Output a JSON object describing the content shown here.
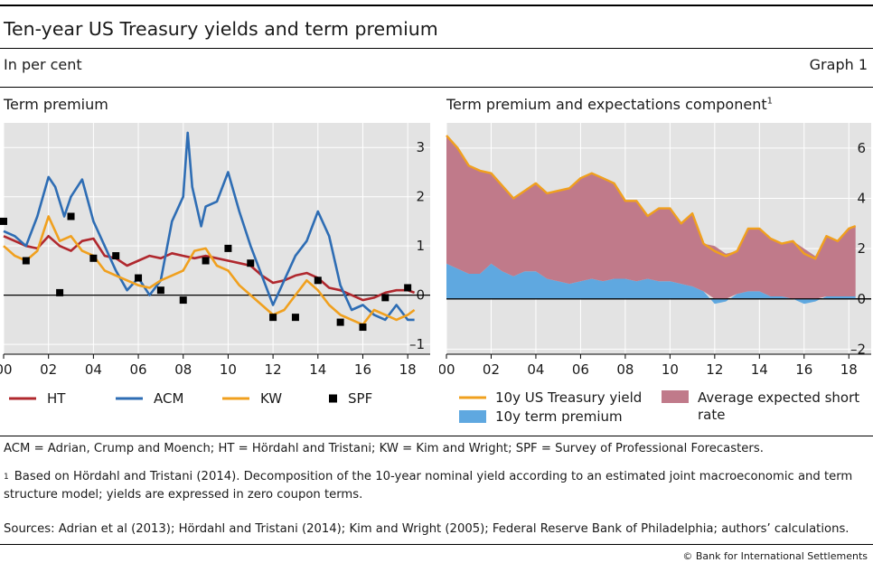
{
  "header": {
    "title": "Ten-year US Treasury yields and term premium",
    "subtitle": "In per cent",
    "graph_label": "Graph 1"
  },
  "footer": {
    "abbreviations": "ACM = Adrian, Crump and Moench; HT = Hördahl and Tristani; KW = Kim and Wright; SPF = Survey of Professional Forecasters.",
    "footnote_marker": "1",
    "footnote": "Based on Hördahl and Tristani (2014). Decomposition of the 10-year nominal yield according to an estimated joint macroeconomic and term structure model; yields are expressed in zero coupon terms.",
    "sources": "Sources: Adrian et al (2013); Hördahl and Tristani (2014); Kim and Wright (2005); Federal Reserve Bank of Philadelphia; authors’ calculations.",
    "copyright": "© Bank for International Settlements"
  },
  "colors": {
    "HT": "#b0282e",
    "ACM": "#2e6db4",
    "KW": "#f0a01e",
    "SPF": "#000000",
    "yield": "#f0a01e",
    "term_premium_area": "#5fa8e0",
    "expected_short_rate_area": "#c07a8a",
    "plot_bg": "#e3e3e3",
    "grid": "#ffffff"
  },
  "chart_data": [
    {
      "type": "line",
      "title": "Term premium",
      "title_superscript": "",
      "xlim": [
        2000,
        2019
      ],
      "ylim": [
        -1.2,
        3.5
      ],
      "x_ticks": [
        "00",
        "02",
        "04",
        "06",
        "08",
        "10",
        "12",
        "14",
        "16",
        "18"
      ],
      "y_ticks": [
        "–1",
        "0",
        "1",
        "2",
        "3"
      ],
      "y_axis": "right",
      "grid": true,
      "legend_position": "bottom",
      "series": [
        {
          "name": "HT",
          "x": [
            2000,
            2000.5,
            2001,
            2001.5,
            2002,
            2002.5,
            2003,
            2003.5,
            2004,
            2004.5,
            2005,
            2005.5,
            2006,
            2006.5,
            2007,
            2007.5,
            2008,
            2008.5,
            2009,
            2009.5,
            2010,
            2010.5,
            2011,
            2011.5,
            2012,
            2012.5,
            2013,
            2013.5,
            2014,
            2014.5,
            2015,
            2015.5,
            2016,
            2016.5,
            2017,
            2017.5,
            2018,
            2018.3
          ],
          "values": [
            1.2,
            1.1,
            1.0,
            0.95,
            1.2,
            1.0,
            0.9,
            1.1,
            1.15,
            0.8,
            0.75,
            0.6,
            0.7,
            0.8,
            0.75,
            0.85,
            0.8,
            0.75,
            0.8,
            0.75,
            0.7,
            0.65,
            0.6,
            0.4,
            0.25,
            0.3,
            0.4,
            0.45,
            0.35,
            0.15,
            0.1,
            0.0,
            -0.1,
            -0.05,
            0.05,
            0.1,
            0.1,
            0.05
          ]
        },
        {
          "name": "ACM",
          "x": [
            2000,
            2000.5,
            2001,
            2001.5,
            2002,
            2002.3,
            2002.7,
            2003,
            2003.5,
            2004,
            2004.5,
            2005,
            2005.5,
            2006,
            2006.5,
            2007,
            2007.5,
            2008,
            2008.2,
            2008.4,
            2008.8,
            2009,
            2009.5,
            2010,
            2010.5,
            2011,
            2011.5,
            2012,
            2012.5,
            2013,
            2013.5,
            2014,
            2014.5,
            2015,
            2015.5,
            2016,
            2016.5,
            2017,
            2017.5,
            2018,
            2018.3
          ],
          "values": [
            1.3,
            1.2,
            1.0,
            1.6,
            2.4,
            2.2,
            1.6,
            2.0,
            2.35,
            1.5,
            1.0,
            0.5,
            0.1,
            0.35,
            0.0,
            0.3,
            1.5,
            2.0,
            3.3,
            2.2,
            1.4,
            1.8,
            1.9,
            2.5,
            1.7,
            1.0,
            0.4,
            -0.2,
            0.3,
            0.8,
            1.1,
            1.7,
            1.2,
            0.2,
            -0.3,
            -0.2,
            -0.4,
            -0.5,
            -0.2,
            -0.5,
            -0.5
          ]
        },
        {
          "name": "KW",
          "x": [
            2000,
            2000.5,
            2001,
            2001.5,
            2002,
            2002.5,
            2003,
            2003.5,
            2004,
            2004.5,
            2005,
            2005.5,
            2006,
            2006.5,
            2007,
            2007.5,
            2008,
            2008.5,
            2009,
            2009.5,
            2010,
            2010.5,
            2011,
            2011.5,
            2012,
            2012.5,
            2013,
            2013.5,
            2014,
            2014.5,
            2015,
            2015.5,
            2016,
            2016.5,
            2017,
            2017.5,
            2018,
            2018.3
          ],
          "values": [
            1.0,
            0.8,
            0.7,
            0.9,
            1.6,
            1.1,
            1.2,
            0.9,
            0.8,
            0.5,
            0.4,
            0.3,
            0.2,
            0.15,
            0.3,
            0.4,
            0.5,
            0.9,
            0.95,
            0.6,
            0.5,
            0.2,
            0.0,
            -0.2,
            -0.4,
            -0.3,
            0.0,
            0.3,
            0.1,
            -0.2,
            -0.4,
            -0.5,
            -0.6,
            -0.3,
            -0.4,
            -0.5,
            -0.4,
            -0.3
          ]
        }
      ],
      "points": {
        "name": "SPF",
        "x": [
          2000,
          2001,
          2002.5,
          2003,
          2004,
          2005,
          2006,
          2007,
          2008,
          2009,
          2010,
          2011,
          2012,
          2013,
          2014,
          2015,
          2016,
          2017,
          2018
        ],
        "values": [
          1.5,
          0.7,
          0.05,
          1.6,
          0.75,
          0.8,
          0.35,
          0.1,
          -0.1,
          0.7,
          0.95,
          0.65,
          -0.45,
          -0.45,
          0.3,
          -0.55,
          -0.65,
          -0.05,
          0.15
        ]
      }
    },
    {
      "type": "area",
      "title": "Term premium and expectations component",
      "title_superscript": "1",
      "xlim": [
        2000,
        2019
      ],
      "ylim": [
        -2.2,
        7.0
      ],
      "x_ticks": [
        "00",
        "02",
        "04",
        "06",
        "08",
        "10",
        "12",
        "14",
        "16",
        "18"
      ],
      "y_ticks": [
        "–2",
        "0",
        "2",
        "4",
        "6"
      ],
      "y_axis": "right",
      "grid": true,
      "legend_position": "bottom",
      "x": [
        2000,
        2000.5,
        2001,
        2001.5,
        2002,
        2002.5,
        2003,
        2003.5,
        2004,
        2004.5,
        2005,
        2005.5,
        2006,
        2006.5,
        2007,
        2007.5,
        2008,
        2008.5,
        2009,
        2009.5,
        2010,
        2010.5,
        2011,
        2011.5,
        2012,
        2012.5,
        2013,
        2013.5,
        2014,
        2014.5,
        2015,
        2015.5,
        2016,
        2016.5,
        2017,
        2017.5,
        2018,
        2018.3
      ],
      "series": [
        {
          "name": "10y US Treasury yield",
          "kind": "line",
          "values": [
            6.5,
            6.0,
            5.3,
            5.1,
            5.0,
            4.5,
            4.0,
            4.3,
            4.6,
            4.2,
            4.3,
            4.4,
            4.8,
            5.0,
            4.8,
            4.6,
            3.9,
            3.9,
            3.3,
            3.6,
            3.6,
            3.0,
            3.4,
            2.2,
            1.9,
            1.7,
            1.9,
            2.8,
            2.8,
            2.4,
            2.2,
            2.3,
            1.8,
            1.6,
            2.5,
            2.3,
            2.8,
            2.9
          ]
        },
        {
          "name": "10y term premium",
          "kind": "area",
          "values": [
            1.4,
            1.2,
            1.0,
            1.0,
            1.4,
            1.1,
            0.9,
            1.1,
            1.1,
            0.8,
            0.7,
            0.6,
            0.7,
            0.8,
            0.7,
            0.8,
            0.8,
            0.7,
            0.8,
            0.7,
            0.7,
            0.6,
            0.5,
            0.3,
            -0.2,
            -0.1,
            0.2,
            0.3,
            0.3,
            0.1,
            0.1,
            0.0,
            -0.2,
            -0.1,
            0.1,
            0.1,
            0.1,
            0.1
          ]
        },
        {
          "name": "Average expected short rate",
          "kind": "area",
          "values": [
            5.1,
            4.8,
            4.3,
            4.1,
            3.6,
            3.4,
            3.1,
            3.2,
            3.5,
            3.4,
            3.6,
            3.8,
            4.1,
            4.2,
            4.1,
            3.8,
            3.1,
            3.2,
            2.5,
            2.9,
            2.9,
            2.4,
            2.9,
            1.9,
            2.1,
            1.8,
            1.7,
            2.5,
            2.5,
            2.3,
            2.1,
            2.3,
            2.0,
            1.7,
            2.4,
            2.2,
            2.7,
            2.8
          ]
        }
      ]
    }
  ]
}
